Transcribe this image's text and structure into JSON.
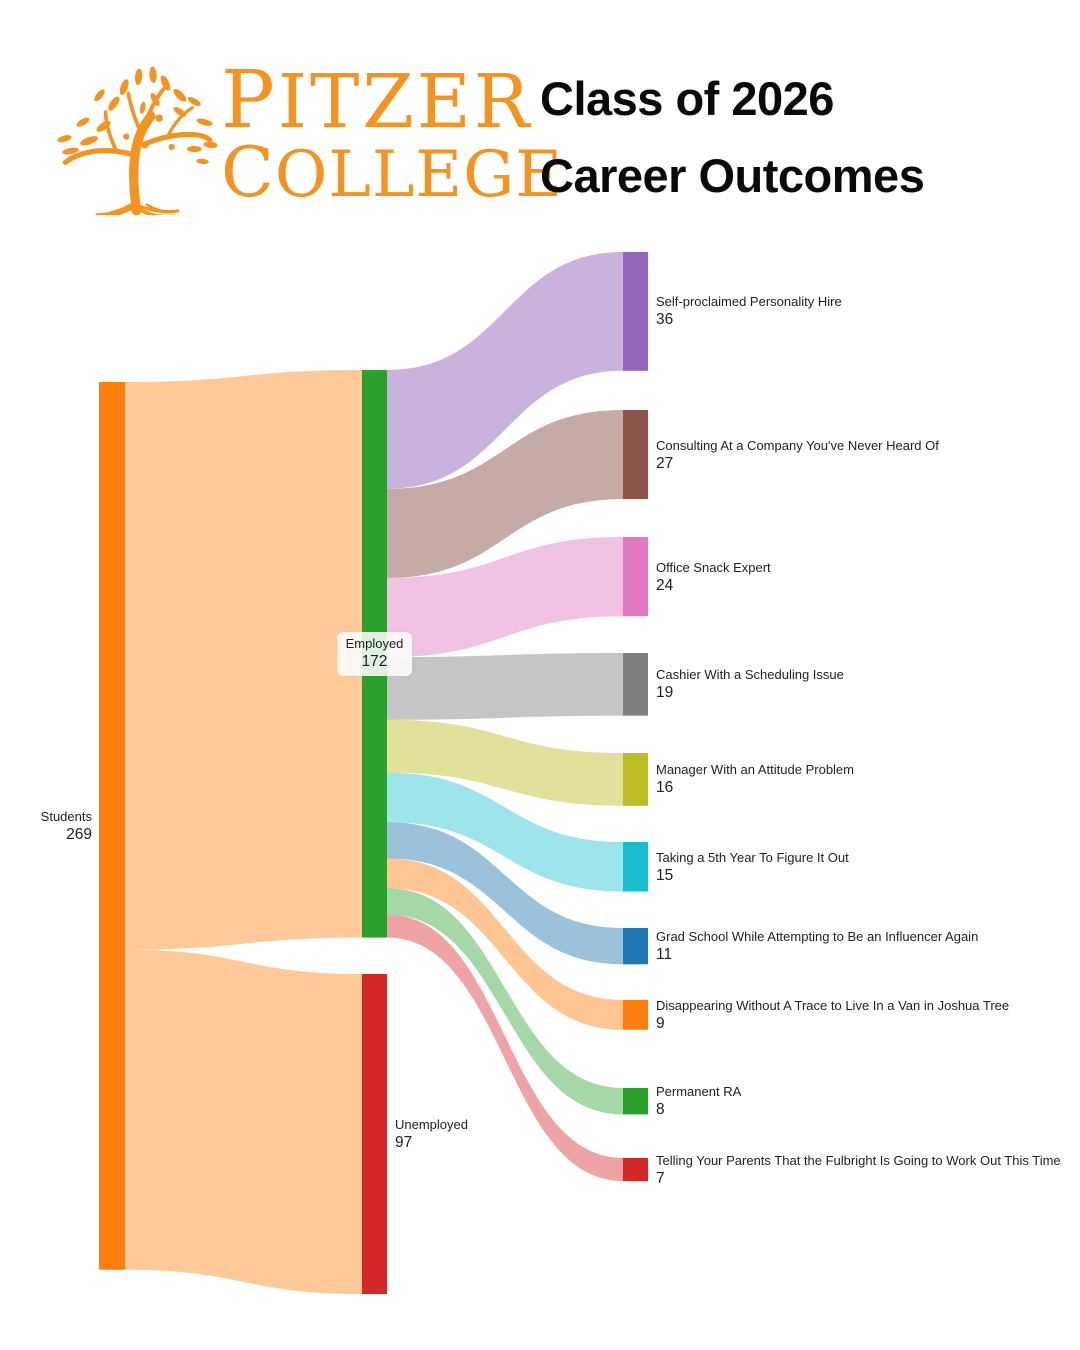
{
  "header": {
    "logo": {
      "line1": "PITZER",
      "line2": "COLLEGE",
      "brand_color": "#F6921E"
    },
    "title_line1": "Class of 2026",
    "title_line2": "Career Outcomes"
  },
  "chart_data": {
    "type": "sankey",
    "title": "Class of 2026 Career Outcomes",
    "unit": "students",
    "total": 269,
    "legend_position": "none",
    "nodes": [
      {
        "id": "students",
        "label": "Students",
        "value": 269,
        "color": "#FF7F0E",
        "column": 0
      },
      {
        "id": "employed",
        "label": "Employed",
        "value": 172,
        "color": "#2CA02C",
        "column": 1
      },
      {
        "id": "unemployed",
        "label": "Unemployed",
        "value": 97,
        "color": "#D62728",
        "column": 1
      },
      {
        "id": "personality",
        "label": "Self-proclaimed Personality Hire",
        "value": 36,
        "color": "#9467BD",
        "column": 2
      },
      {
        "id": "consulting",
        "label": "Consulting At a Company You've Never Heard Of",
        "value": 27,
        "color": "#8C564B",
        "column": 2
      },
      {
        "id": "snack",
        "label": "Office Snack Expert",
        "value": 24,
        "color": "#E377C2",
        "column": 2
      },
      {
        "id": "cashier",
        "label": "Cashier With a Scheduling Issue",
        "value": 19,
        "color": "#7F7F7F",
        "column": 2
      },
      {
        "id": "manager",
        "label": "Manager With an Attitude Problem",
        "value": 16,
        "color": "#BCBD22",
        "column": 2
      },
      {
        "id": "fifthyear",
        "label": "Taking a 5th Year To Figure It Out",
        "value": 15,
        "color": "#17BECF",
        "column": 2
      },
      {
        "id": "gradschool",
        "label": "Grad School While Attempting to Be an Influencer Again",
        "value": 11,
        "color": "#1F77B4",
        "column": 2
      },
      {
        "id": "vanlife",
        "label": "Disappearing Without A Trace to Live In a Van in Joshua Tree",
        "value": 9,
        "color": "#FF7F0E",
        "column": 2
      },
      {
        "id": "ra",
        "label": "Permanent RA",
        "value": 8,
        "color": "#2CA02C",
        "column": 2
      },
      {
        "id": "fulbright",
        "label": "Telling Your Parents That the Fulbright Is Going to Work Out This Time",
        "value": 7,
        "color": "#D62728",
        "column": 2
      }
    ],
    "links": [
      {
        "source": "students",
        "target": "employed",
        "value": 172,
        "color": "rgba(255,127,14,0.42)"
      },
      {
        "source": "students",
        "target": "unemployed",
        "value": 97,
        "color": "rgba(255,127,14,0.42)"
      },
      {
        "source": "employed",
        "target": "personality",
        "value": 36,
        "color": "rgba(148,103,189,0.5)"
      },
      {
        "source": "employed",
        "target": "consulting",
        "value": 27,
        "color": "rgba(140,86,75,0.5)"
      },
      {
        "source": "employed",
        "target": "snack",
        "value": 24,
        "color": "rgba(227,119,194,0.45)"
      },
      {
        "source": "employed",
        "target": "cashier",
        "value": 19,
        "color": "rgba(127,127,127,0.45)"
      },
      {
        "source": "employed",
        "target": "manager",
        "value": 16,
        "color": "rgba(188,189,34,0.45)"
      },
      {
        "source": "employed",
        "target": "fifthyear",
        "value": 15,
        "color": "rgba(23,190,207,0.42)"
      },
      {
        "source": "employed",
        "target": "gradschool",
        "value": 11,
        "color": "rgba(31,119,180,0.45)"
      },
      {
        "source": "employed",
        "target": "vanlife",
        "value": 9,
        "color": "rgba(255,127,14,0.45)"
      },
      {
        "source": "employed",
        "target": "ra",
        "value": 8,
        "color": "rgba(44,160,44,0.42)"
      },
      {
        "source": "employed",
        "target": "fulbright",
        "value": 7,
        "color": "rgba(214,39,40,0.42)"
      }
    ]
  }
}
